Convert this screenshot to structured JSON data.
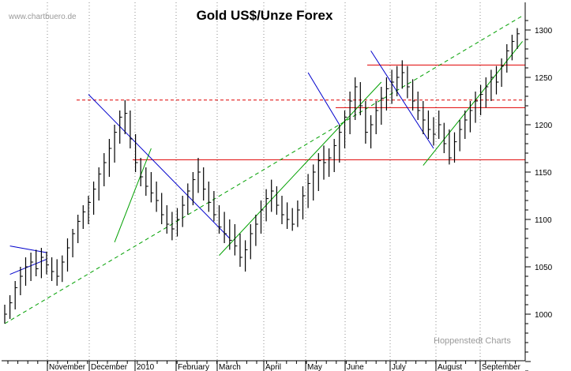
{
  "chart_data": {
    "type": "ohlc",
    "title": "Gold US$/Unze Forex",
    "watermark": "www.chartbuero.de",
    "credit": "Hoppenstedt Charts",
    "y_axis": {
      "side": "right",
      "ylim": [
        935,
        1320
      ],
      "ticks": [
        1000,
        1050,
        1100,
        1150,
        1200,
        1250,
        1300
      ]
    },
    "x_axis": {
      "labels": [
        "November",
        "December",
        "2010",
        "February",
        "March",
        "April",
        "May",
        "June",
        "July",
        "August",
        "September"
      ]
    },
    "grid": {
      "vertical": "dotted",
      "horizontal": "none"
    },
    "price_series": [
      {
        "lo": 990,
        "hi": 1010,
        "cl": 1000
      },
      {
        "lo": 995,
        "hi": 1020,
        "cl": 1012
      },
      {
        "lo": 1005,
        "hi": 1035,
        "cl": 1028
      },
      {
        "lo": 1020,
        "hi": 1050,
        "cl": 1040
      },
      {
        "lo": 1030,
        "hi": 1060,
        "cl": 1050
      },
      {
        "lo": 1035,
        "hi": 1065,
        "cl": 1055
      },
      {
        "lo": 1040,
        "hi": 1068,
        "cl": 1048
      },
      {
        "lo": 1038,
        "hi": 1070,
        "cl": 1060
      },
      {
        "lo": 1042,
        "hi": 1066,
        "cl": 1052
      },
      {
        "lo": 1035,
        "hi": 1060,
        "cl": 1045
      },
      {
        "lo": 1030,
        "hi": 1058,
        "cl": 1040
      },
      {
        "lo": 1034,
        "hi": 1062,
        "cl": 1055
      },
      {
        "lo": 1045,
        "hi": 1080,
        "cl": 1070
      },
      {
        "lo": 1060,
        "hi": 1090,
        "cl": 1085
      },
      {
        "lo": 1075,
        "hi": 1105,
        "cl": 1098
      },
      {
        "lo": 1090,
        "hi": 1115,
        "cl": 1108
      },
      {
        "lo": 1095,
        "hi": 1125,
        "cl": 1118
      },
      {
        "lo": 1105,
        "hi": 1140,
        "cl": 1132
      },
      {
        "lo": 1120,
        "hi": 1155,
        "cl": 1148
      },
      {
        "lo": 1135,
        "hi": 1170,
        "cl": 1160
      },
      {
        "lo": 1145,
        "hi": 1185,
        "cl": 1175
      },
      {
        "lo": 1160,
        "hi": 1200,
        "cl": 1192
      },
      {
        "lo": 1180,
        "hi": 1215,
        "cl": 1208
      },
      {
        "lo": 1190,
        "hi": 1226,
        "cl": 1212
      },
      {
        "lo": 1175,
        "hi": 1215,
        "cl": 1185
      },
      {
        "lo": 1150,
        "hi": 1190,
        "cl": 1160
      },
      {
        "lo": 1135,
        "hi": 1165,
        "cl": 1145
      },
      {
        "lo": 1125,
        "hi": 1155,
        "cl": 1135
      },
      {
        "lo": 1118,
        "hi": 1150,
        "cl": 1128
      },
      {
        "lo": 1108,
        "hi": 1140,
        "cl": 1120
      },
      {
        "lo": 1095,
        "hi": 1128,
        "cl": 1105
      },
      {
        "lo": 1085,
        "hi": 1115,
        "cl": 1095
      },
      {
        "lo": 1078,
        "hi": 1108,
        "cl": 1090
      },
      {
        "lo": 1082,
        "hi": 1112,
        "cl": 1100
      },
      {
        "lo": 1092,
        "hi": 1125,
        "cl": 1115
      },
      {
        "lo": 1105,
        "hi": 1138,
        "cl": 1130
      },
      {
        "lo": 1115,
        "hi": 1150,
        "cl": 1142
      },
      {
        "lo": 1128,
        "hi": 1165,
        "cl": 1150
      },
      {
        "lo": 1120,
        "hi": 1155,
        "cl": 1132
      },
      {
        "lo": 1108,
        "hi": 1140,
        "cl": 1118
      },
      {
        "lo": 1098,
        "hi": 1130,
        "cl": 1105
      },
      {
        "lo": 1085,
        "hi": 1115,
        "cl": 1092
      },
      {
        "lo": 1075,
        "hi": 1108,
        "cl": 1085
      },
      {
        "lo": 1068,
        "hi": 1100,
        "cl": 1078
      },
      {
        "lo": 1062,
        "hi": 1095,
        "cl": 1072
      },
      {
        "lo": 1050,
        "hi": 1085,
        "cl": 1060
      },
      {
        "lo": 1045,
        "hi": 1078,
        "cl": 1068
      },
      {
        "lo": 1058,
        "hi": 1095,
        "cl": 1085
      },
      {
        "lo": 1072,
        "hi": 1105,
        "cl": 1095
      },
      {
        "lo": 1085,
        "hi": 1120,
        "cl": 1110
      },
      {
        "lo": 1098,
        "hi": 1132,
        "cl": 1122
      },
      {
        "lo": 1108,
        "hi": 1142,
        "cl": 1130
      },
      {
        "lo": 1105,
        "hi": 1135,
        "cl": 1115
      },
      {
        "lo": 1095,
        "hi": 1125,
        "cl": 1105
      },
      {
        "lo": 1090,
        "hi": 1118,
        "cl": 1100
      },
      {
        "lo": 1088,
        "hi": 1112,
        "cl": 1095
      },
      {
        "lo": 1092,
        "hi": 1120,
        "cl": 1110
      },
      {
        "lo": 1100,
        "hi": 1135,
        "cl": 1125
      },
      {
        "lo": 1112,
        "hi": 1148,
        "cl": 1138
      },
      {
        "lo": 1120,
        "hi": 1158,
        "cl": 1150
      },
      {
        "lo": 1130,
        "hi": 1170,
        "cl": 1162
      },
      {
        "lo": 1142,
        "hi": 1178,
        "cl": 1160
      },
      {
        "lo": 1145,
        "hi": 1175,
        "cl": 1165
      },
      {
        "lo": 1150,
        "hi": 1185,
        "cl": 1178
      },
      {
        "lo": 1160,
        "hi": 1200,
        "cl": 1192
      },
      {
        "lo": 1175,
        "hi": 1215,
        "cl": 1208
      },
      {
        "lo": 1190,
        "hi": 1235,
        "cl": 1225
      },
      {
        "lo": 1205,
        "hi": 1250,
        "cl": 1240
      },
      {
        "lo": 1210,
        "hi": 1245,
        "cl": 1220
      },
      {
        "lo": 1180,
        "hi": 1225,
        "cl": 1192
      },
      {
        "lo": 1175,
        "hi": 1210,
        "cl": 1200
      },
      {
        "lo": 1190,
        "hi": 1225,
        "cl": 1215
      },
      {
        "lo": 1200,
        "hi": 1240,
        "cl": 1228
      },
      {
        "lo": 1215,
        "hi": 1250,
        "cl": 1238
      },
      {
        "lo": 1222,
        "hi": 1258,
        "cl": 1245
      },
      {
        "lo": 1230,
        "hi": 1262,
        "cl": 1250
      },
      {
        "lo": 1238,
        "hi": 1268,
        "cl": 1255
      },
      {
        "lo": 1228,
        "hi": 1262,
        "cl": 1240
      },
      {
        "lo": 1215,
        "hi": 1248,
        "cl": 1225
      },
      {
        "lo": 1205,
        "hi": 1235,
        "cl": 1215
      },
      {
        "lo": 1190,
        "hi": 1225,
        "cl": 1205
      },
      {
        "lo": 1185,
        "hi": 1215,
        "cl": 1195
      },
      {
        "lo": 1178,
        "hi": 1208,
        "cl": 1190
      },
      {
        "lo": 1185,
        "hi": 1215,
        "cl": 1200
      },
      {
        "lo": 1170,
        "hi": 1202,
        "cl": 1180
      },
      {
        "lo": 1158,
        "hi": 1195,
        "cl": 1165
      },
      {
        "lo": 1160,
        "hi": 1192,
        "cl": 1182
      },
      {
        "lo": 1172,
        "hi": 1205,
        "cl": 1195
      },
      {
        "lo": 1185,
        "hi": 1215,
        "cl": 1205
      },
      {
        "lo": 1192,
        "hi": 1225,
        "cl": 1215
      },
      {
        "lo": 1202,
        "hi": 1235,
        "cl": 1225
      },
      {
        "lo": 1210,
        "hi": 1242,
        "cl": 1232
      },
      {
        "lo": 1218,
        "hi": 1250,
        "cl": 1240
      },
      {
        "lo": 1225,
        "hi": 1258,
        "cl": 1250
      },
      {
        "lo": 1232,
        "hi": 1262,
        "cl": 1245
      },
      {
        "lo": 1240,
        "hi": 1270,
        "cl": 1262
      },
      {
        "lo": 1255,
        "hi": 1285,
        "cl": 1278
      },
      {
        "lo": 1268,
        "hi": 1295,
        "cl": 1288
      },
      {
        "lo": 1280,
        "hi": 1302,
        "cl": 1296
      }
    ],
    "horizontal_levels": [
      {
        "value": 1226,
        "color": "#e00000",
        "style": "dashed"
      },
      {
        "value": 1263,
        "color": "#e00000",
        "style": "solid"
      },
      {
        "value": 1218,
        "color": "#e00000",
        "style": "solid"
      },
      {
        "value": 1163,
        "color": "#e00000",
        "style": "solid"
      }
    ],
    "trendlines": [
      {
        "color": "#00a000",
        "style": "dashed",
        "from": [
          0,
          990
        ],
        "to": [
          99,
          1315
        ]
      },
      {
        "color": "#00a000",
        "style": "solid",
        "from": [
          0,
          935
        ],
        "to": [
          3,
          938
        ]
      },
      {
        "color": "#00a000",
        "style": "solid",
        "from": [
          21,
          1076
        ],
        "to": [
          28,
          1175
        ]
      },
      {
        "color": "#00a000",
        "style": "solid",
        "from": [
          41,
          1062
        ],
        "to": [
          72,
          1245
        ]
      },
      {
        "color": "#00a000",
        "style": "solid",
        "from": [
          80,
          1157
        ],
        "to": [
          99,
          1288
        ]
      },
      {
        "color": "#0000cc",
        "style": "solid",
        "from": [
          16,
          1232
        ],
        "to": [
          43,
          1080
        ]
      },
      {
        "color": "#0000cc",
        "style": "solid",
        "from": [
          58,
          1255
        ],
        "to": [
          64,
          1200
        ]
      },
      {
        "color": "#0000cc",
        "style": "solid",
        "from": [
          70,
          1278
        ],
        "to": [
          82,
          1175
        ]
      },
      {
        "color": "#0000cc",
        "style": "solid",
        "from": [
          1,
          1072
        ],
        "to": [
          8,
          1065
        ]
      },
      {
        "color": "#0000cc",
        "style": "solid",
        "from": [
          1,
          1042
        ],
        "to": [
          8,
          1058
        ]
      }
    ]
  }
}
